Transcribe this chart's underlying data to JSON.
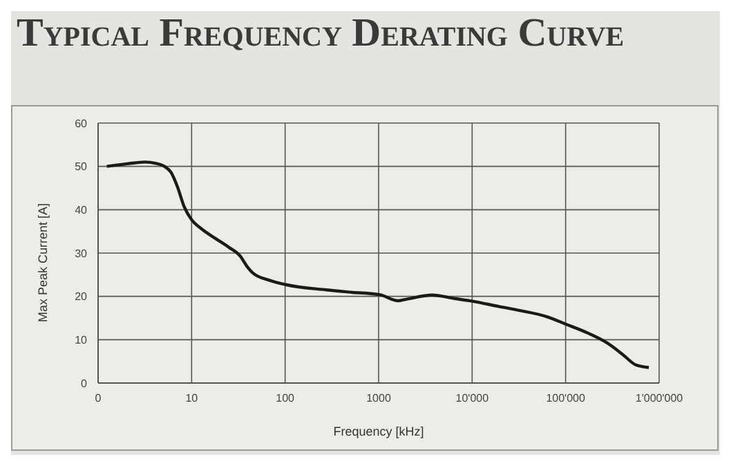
{
  "chart_data": {
    "type": "line",
    "title": "Typical Frequency Derating Curve",
    "xlabel": "Frequency [kHz]",
    "ylabel": "Max Peak Current [A]",
    "x": [
      1.24,
      2.04,
      3.16,
      4.17,
      5.13,
      6.03,
      7.08,
      8.32,
      9.9,
      12.9,
      18.2,
      25.1,
      33.1,
      38.9,
      45.7,
      66.1,
      102,
      275,
      479,
      1023,
      1622,
      2042,
      3715,
      6457,
      10000,
      19055,
      33113,
      63096,
      100000,
      169824,
      275423,
      407380,
      562341,
      776247
    ],
    "series": [
      {
        "color": "#1a1a1a",
        "values": [
          50,
          50.6,
          51,
          50.7,
          50,
          48.6,
          45.2,
          40.7,
          37.8,
          35.5,
          33.3,
          31.3,
          29.3,
          27,
          25.3,
          23.8,
          22.7,
          21.5,
          21,
          20.4,
          19,
          19.4,
          20.3,
          19.5,
          18.9,
          17.7,
          16.7,
          15.3,
          13.6,
          11.6,
          9.3,
          6.6,
          4.2,
          3.6
        ]
      }
    ],
    "log": "x",
    "xlim": [
      0,
      1000000
    ],
    "xticks": [
      0,
      10,
      100,
      1000,
      {
        "value": 10000,
        "label": "10'000"
      },
      {
        "value": 100000,
        "label": "100'000"
      },
      {
        "value": 1000000,
        "label": "1'000'000"
      }
    ],
    "ylim": [
      0,
      60
    ],
    "yticks": [
      0,
      10,
      20,
      30,
      40,
      50,
      60
    ],
    "grid": true,
    "marker": "none",
    "line_style": "solid"
  }
}
